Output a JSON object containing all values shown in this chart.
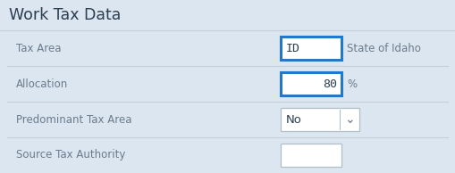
{
  "title": "Work Tax Data",
  "bg_color": "#dce6f0",
  "row_bg": "#dce6f0",
  "white": "#ffffff",
  "border_blue": "#2577c8",
  "border_gray": "#b0bec5",
  "text_dark": "#2c3e50",
  "text_label": "#6b7c8d",
  "text_gray_light": "#8fa0b0",
  "divider_color": "#c5cfd8",
  "title_color": "#2c3e50",
  "rows": [
    {
      "label": "Tax Area",
      "field_val": "ID",
      "extra_text": "State of Idaho",
      "highlight": true,
      "field_align": "left",
      "dropdown": false,
      "show_field": true
    },
    {
      "label": "Allocation",
      "field_val": "80",
      "extra_text": "%",
      "highlight": true,
      "field_align": "right",
      "dropdown": false,
      "show_field": true
    },
    {
      "label": "Predominant Tax Area",
      "field_val": "No",
      "extra_text": "",
      "highlight": false,
      "field_align": "left",
      "dropdown": true,
      "show_field": true
    },
    {
      "label": "Source Tax Authority",
      "field_val": "",
      "extra_text": "",
      "highlight": false,
      "field_align": "left",
      "dropdown": false,
      "show_field": true
    }
  ],
  "figw": 5.09,
  "figh": 1.94,
  "dpi": 100
}
